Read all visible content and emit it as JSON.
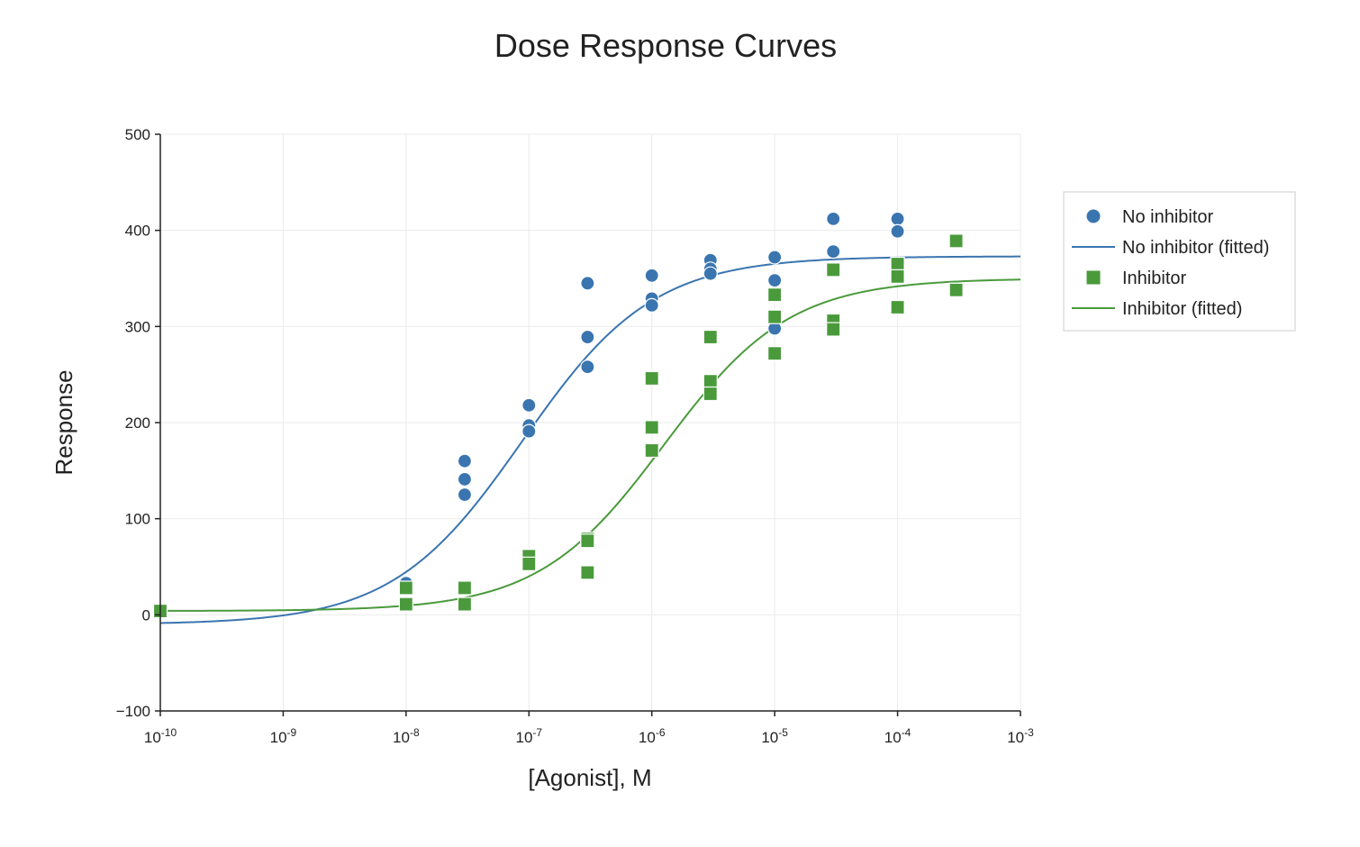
{
  "chart_data": {
    "type": "scatter",
    "title": "Dose Response Curves",
    "xlabel": "[Agonist], M",
    "ylabel": "Response",
    "xscale": "log",
    "xlim_exp": [
      -10,
      -3
    ],
    "ylim": [
      -100,
      500
    ],
    "x_ticks": [
      {
        "exp": -10,
        "base": "10",
        "sup": "-10"
      },
      {
        "exp": -9,
        "base": "10",
        "sup": "-9"
      },
      {
        "exp": -8,
        "base": "10",
        "sup": "-8"
      },
      {
        "exp": -7,
        "base": "10",
        "sup": "-7"
      },
      {
        "exp": -6,
        "base": "10",
        "sup": "-6"
      },
      {
        "exp": -5,
        "base": "10",
        "sup": "-5"
      },
      {
        "exp": -4,
        "base": "10",
        "sup": "-4"
      },
      {
        "exp": -3,
        "base": "10",
        "sup": "-3"
      }
    ],
    "y_ticks": [
      {
        "value": 500,
        "label": "500"
      },
      {
        "value": 400,
        "label": "400"
      },
      {
        "value": 300,
        "label": "300"
      },
      {
        "value": 200,
        "label": "200"
      },
      {
        "value": 100,
        "label": "100"
      },
      {
        "value": 0,
        "label": "0"
      },
      {
        "value": -100,
        "label": "−100"
      }
    ],
    "grid": true,
    "legend_position": "right",
    "series": [
      {
        "name": "No inhibitor",
        "kind": "points",
        "marker": "circle",
        "color": "#3a75b0",
        "points": [
          [
            -8,
            33
          ],
          [
            -7.523,
            160
          ],
          [
            -7.523,
            141
          ],
          [
            -7.523,
            125
          ],
          [
            -7,
            218
          ],
          [
            -7,
            197
          ],
          [
            -7,
            191
          ],
          [
            -6.523,
            345
          ],
          [
            -6.523,
            289
          ],
          [
            -6.523,
            258
          ],
          [
            -6,
            353
          ],
          [
            -6,
            329
          ],
          [
            -6,
            322
          ],
          [
            -5.523,
            369
          ],
          [
            -5.523,
            360
          ],
          [
            -5.523,
            355
          ],
          [
            -5,
            372
          ],
          [
            -5,
            348
          ],
          [
            -5,
            298
          ],
          [
            -4.523,
            412
          ],
          [
            -4.523,
            378
          ],
          [
            -4,
            412
          ],
          [
            -4,
            399
          ]
        ]
      },
      {
        "name": "No inhibitor (fitted)",
        "kind": "curve",
        "color": "#3a75b0",
        "model": {
          "bottom": -10,
          "top": 373,
          "logEC50": -7.05,
          "hill": 0.82
        }
      },
      {
        "name": "Inhibitor",
        "kind": "points",
        "marker": "square",
        "color": "#4a9a3c",
        "points": [
          [
            -10,
            4
          ],
          [
            -8,
            28
          ],
          [
            -8,
            11
          ],
          [
            -7.523,
            28
          ],
          [
            -7.523,
            11
          ],
          [
            -7,
            61
          ],
          [
            -7,
            53
          ],
          [
            -6.523,
            79
          ],
          [
            -6.523,
            77
          ],
          [
            -6.523,
            44
          ],
          [
            -6,
            246
          ],
          [
            -6,
            195
          ],
          [
            -6,
            171
          ],
          [
            -5.523,
            289
          ],
          [
            -5.523,
            243
          ],
          [
            -5.523,
            230
          ],
          [
            -5,
            333
          ],
          [
            -5,
            310
          ],
          [
            -5,
            272
          ],
          [
            -4.523,
            359
          ],
          [
            -4.523,
            306
          ],
          [
            -4.523,
            297
          ],
          [
            -4,
            365
          ],
          [
            -4,
            352
          ],
          [
            -4,
            320
          ],
          [
            -3.523,
            389
          ],
          [
            -3.523,
            338
          ]
        ]
      },
      {
        "name": "Inhibitor (fitted)",
        "kind": "curve",
        "color": "#4a9a3c",
        "model": {
          "bottom": 4,
          "top": 350,
          "logEC50": -5.9,
          "hill": 0.85
        }
      }
    ]
  }
}
